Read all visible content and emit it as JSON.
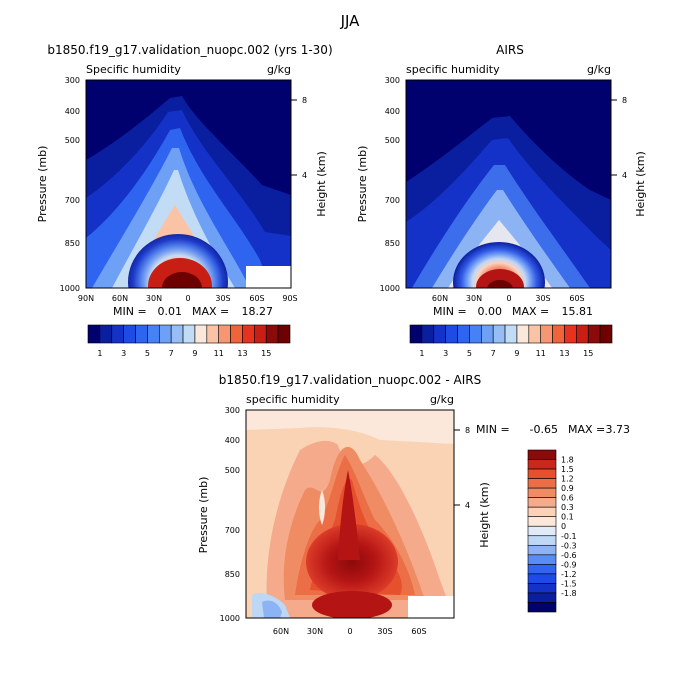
{
  "figure_title": "JJA",
  "chart_data": [
    {
      "type": "contour",
      "title": "b1850.f19_g17.validation_nuopc.002 (yrs 1-30)",
      "left_label": "Specific humidity",
      "right_label": "g/kg",
      "ylabel": "Pressure (mb)",
      "y2label": "Height (km)",
      "y_ticks": [
        "300",
        "400",
        "500",
        "700",
        "850",
        "1000"
      ],
      "y2_ticks": [
        "8",
        "4"
      ],
      "x_ticks": [
        "90N",
        "60N",
        "30N",
        "0",
        "30S",
        "60S",
        "90S"
      ],
      "min_label": "MIN =",
      "min_value": "0.01",
      "max_label": "MAX =",
      "max_value": "18.27",
      "peak": {
        "lat": -5,
        "p": 1000,
        "value": 18.27
      }
    },
    {
      "type": "contour",
      "title": "AIRS",
      "left_label": "specific humidity",
      "right_label": "g/kg",
      "y_ticks": [
        "300",
        "400",
        "500",
        "700",
        "850",
        "1000"
      ],
      "y2_ticks": [
        "8",
        "4"
      ],
      "x_ticks": [
        "60N",
        "30N",
        "0",
        "30S",
        "60S"
      ],
      "min_label": "MIN =",
      "min_value": "0.00",
      "max_label": "MAX =",
      "max_value": "15.81",
      "peak": {
        "lat": -5,
        "p": 1000,
        "value": 15.81
      }
    },
    {
      "type": "contour",
      "title": "b1850.f19_g17.validation_nuopc.002 - AIRS",
      "left_label": "specific humidity",
      "right_label": "g/kg",
      "ylabel": "Pressure (mb)",
      "y2label": "Height (km)",
      "y_ticks": [
        "300",
        "400",
        "500",
        "700",
        "850",
        "1000"
      ],
      "y2_ticks": [
        "8",
        "4"
      ],
      "x_ticks": [
        "60N",
        "30N",
        "0",
        "30S",
        "60S"
      ],
      "min_label": "MIN =",
      "min_value": "-0.65",
      "max_label": "MAX =",
      "max_value": "3.73"
    }
  ],
  "colorbar_1": {
    "colors": [
      "#00006e",
      "#0a1ea0",
      "#1432c8",
      "#1e4be6",
      "#2e64f0",
      "#4682f5",
      "#6ea0f5",
      "#96bef5",
      "#c3dcf5",
      "#fbe8da",
      "#fac3a5",
      "#f69673",
      "#f0643c",
      "#e6321e",
      "#c81e14",
      "#8c0a0a",
      "#6e0000"
    ],
    "labels": [
      "1",
      "3",
      "5",
      "7",
      "9",
      "11",
      "13",
      "15"
    ]
  },
  "colorbar_2": {
    "colors": [
      "#00006e",
      "#0a1ea0",
      "#1432c8",
      "#1e4be6",
      "#3264f0",
      "#5a8cf5",
      "#8cb4f5",
      "#bed7f5",
      "#e1ebf8",
      "#fbe8da",
      "#fad2b4",
      "#f5aa8c",
      "#f08c64",
      "#eb6e46",
      "#e6502d",
      "#c8281e",
      "#8c0a0a"
    ],
    "labels": [
      "1.8",
      "1.5",
      "1.2",
      "0.9",
      "0.6",
      "0.3",
      "0.1",
      "0",
      "-0.1",
      "-0.3",
      "-0.6",
      "-0.9",
      "-1.2",
      "-1.5",
      "-1.8"
    ]
  }
}
